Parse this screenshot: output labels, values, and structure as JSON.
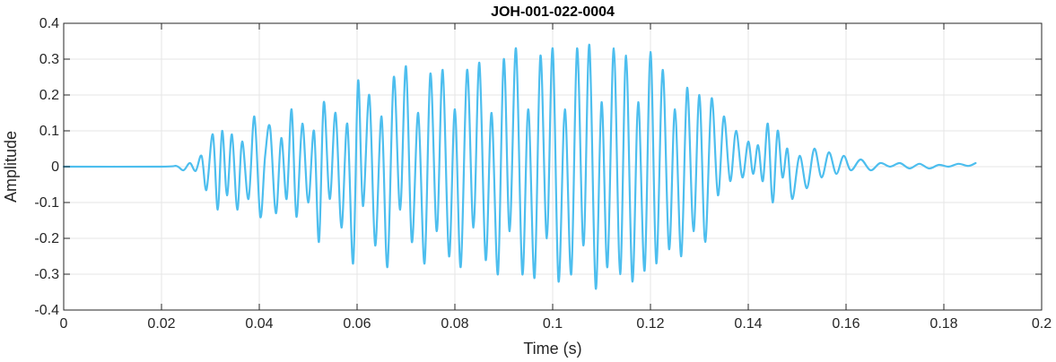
{
  "chart_data": {
    "type": "line",
    "title": "JOH-001-022-0004",
    "xlabel": "Time (s)",
    "ylabel": "Amplitude",
    "xlim": [
      0,
      0.2
    ],
    "ylim": [
      -0.4,
      0.4
    ],
    "x_ticks": [
      0,
      0.02,
      0.04,
      0.06,
      0.08,
      0.1,
      0.12,
      0.14,
      0.16,
      0.18,
      0.2
    ],
    "x_tick_labels": [
      "0",
      "0.02",
      "0.04",
      "0.06",
      "0.08",
      "0.1",
      "0.12",
      "0.14",
      "0.16",
      "0.18",
      "0.2"
    ],
    "y_ticks": [
      -0.4,
      -0.3,
      -0.2,
      -0.1,
      0,
      0.1,
      0.2,
      0.3,
      0.4
    ],
    "y_tick_labels": [
      "-0.4",
      "-0.3",
      "-0.2",
      "-0.1",
      "0",
      "0.1",
      "0.2",
      "0.3",
      "0.4"
    ],
    "grid": true,
    "colors": {
      "line": "#4DBEEE",
      "grid": "#e6e6e6",
      "axis": "#262626"
    },
    "series": [
      {
        "x": [
          0,
          0.02,
          0.023,
          0.0245,
          0.0258,
          0.027,
          0.0282,
          0.0292,
          0.0305,
          0.0315,
          0.0324,
          0.0334,
          0.0344,
          0.0355,
          0.0365,
          0.0378,
          0.039,
          0.0402,
          0.0412,
          0.0422,
          0.0434,
          0.0445,
          0.0456,
          0.0466,
          0.0476,
          0.0488,
          0.05,
          0.0512,
          0.0522,
          0.0532,
          0.0544,
          0.0556,
          0.0568,
          0.058,
          0.0592,
          0.0602,
          0.0612,
          0.0625,
          0.0637,
          0.065,
          0.0662,
          0.0675,
          0.0688,
          0.07,
          0.0712,
          0.0725,
          0.0738,
          0.075,
          0.0763,
          0.0775,
          0.0788,
          0.08,
          0.0812,
          0.0825,
          0.0838,
          0.085,
          0.0863,
          0.0875,
          0.0888,
          0.09,
          0.0912,
          0.0925,
          0.0938,
          0.095,
          0.0963,
          0.0975,
          0.0988,
          0.1,
          0.1012,
          0.1025,
          0.1038,
          0.105,
          0.1063,
          0.1075,
          0.1088,
          0.11,
          0.1112,
          0.1125,
          0.1138,
          0.115,
          0.1163,
          0.1175,
          0.1188,
          0.12,
          0.1212,
          0.1225,
          0.1238,
          0.125,
          0.1263,
          0.1275,
          0.1288,
          0.13,
          0.1312,
          0.1325,
          0.1338,
          0.135,
          0.1363,
          0.1375,
          0.1388,
          0.14,
          0.141,
          0.142,
          0.143,
          0.144,
          0.145,
          0.146,
          0.147,
          0.148,
          0.149,
          0.1505,
          0.152,
          0.1535,
          0.155,
          0.1565,
          0.158,
          0.1595,
          0.161,
          0.163,
          0.165,
          0.167,
          0.169,
          0.171,
          0.173,
          0.175,
          0.177,
          0.179,
          0.181,
          0.183,
          0.185,
          0.1865
        ],
        "y": [
          0,
          0,
          0.002,
          -0.01,
          0.01,
          -0.012,
          0.03,
          -0.065,
          0.09,
          -0.12,
          0.1,
          -0.08,
          0.09,
          -0.12,
          0.07,
          -0.09,
          0.14,
          -0.14,
          0.03,
          0.11,
          -0.13,
          0.08,
          -0.09,
          0.16,
          -0.14,
          0.12,
          -0.1,
          0.1,
          -0.21,
          0.18,
          -0.09,
          0.15,
          -0.17,
          0.12,
          -0.27,
          0.24,
          -0.11,
          0.2,
          -0.22,
          0.14,
          -0.28,
          0.25,
          -0.12,
          0.28,
          -0.21,
          0.15,
          -0.27,
          0.26,
          -0.18,
          0.27,
          -0.25,
          0.16,
          -0.28,
          0.27,
          -0.17,
          0.29,
          -0.26,
          0.15,
          -0.3,
          0.3,
          -0.18,
          0.33,
          -0.3,
          0.16,
          -0.31,
          0.31,
          -0.2,
          0.33,
          -0.32,
          0.16,
          -0.3,
          0.33,
          -0.22,
          0.34,
          -0.34,
          0.18,
          -0.28,
          0.33,
          -0.3,
          0.31,
          -0.32,
          0.18,
          -0.29,
          0.32,
          -0.27,
          0.27,
          -0.23,
          0.16,
          -0.25,
          0.22,
          -0.18,
          0.2,
          -0.21,
          0.19,
          -0.08,
          0.14,
          -0.04,
          0.1,
          -0.03,
          0.07,
          -0.02,
          0.06,
          -0.04,
          0.12,
          -0.1,
          0.1,
          -0.03,
          0.05,
          -0.09,
          0.03,
          -0.06,
          0.05,
          -0.03,
          0.04,
          -0.02,
          0.03,
          -0.01,
          0.02,
          -0.01,
          0.01,
          0,
          0.01,
          -0.005,
          0.008,
          -0.005,
          0.005,
          0,
          0.008,
          0.002,
          0.01
        ]
      }
    ]
  }
}
